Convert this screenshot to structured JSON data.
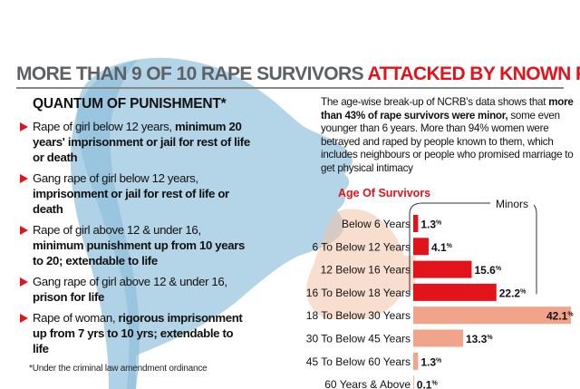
{
  "colors": {
    "red": "#e3131b",
    "salmon": "#f2a48b",
    "grey_text": "#5d6166",
    "silhouette": "#a7cde3"
  },
  "headline": {
    "part1": "MORE THAN 9 OF 10 RAPE SURVIVORS ",
    "part2": "ATTACKED BY KNOWN PEOPLE"
  },
  "punishment": {
    "title": "QUANTUM OF PUNISHMENT*",
    "items": [
      {
        "lead": "Rape of girl below 12 years,",
        "detail": "minimum 20 years' imprisonment or jail for rest of life or death"
      },
      {
        "lead": "Gang rape of girl below 12 years,",
        "detail": "imprisonment or jail for rest of life or death"
      },
      {
        "lead": "Rape of girl above 12 & under 16,",
        "detail": "minimum punishment up from 10 years to 20; extendable to life"
      },
      {
        "lead": "Gang rape of girl above 12 & under 16,",
        "detail": "prison for life"
      },
      {
        "lead": "Rape of woman,",
        "detail": "rigorous imprisonment up from 7 yrs to 10 yrs; extendable to life"
      }
    ],
    "footnote": "*Under the criminal law amendment ordinance"
  },
  "intro": {
    "part1": "The age-wise break-up of NCRB's data shows that ",
    "part2_bold": "more than 43% of rape survivors were minor,",
    "part3": " some even younger than 6 years. More than 94% women were betrayed and raped by people known to them, which includes neighbours or people who promised marriage to get physical intimacy"
  },
  "chart_data": {
    "type": "bar",
    "title": "Age Of Survivors",
    "annotation": "Minors",
    "orientation": "horizontal",
    "value_suffix": "%",
    "categories": [
      "Below 6 Years",
      "6 To Below 12 Years",
      "12 Below 16 Years",
      "16 To Below 18 Years",
      "18 To Below 30 Years",
      "30 To Below 45 Years",
      "45 To Below 60 Years",
      "60 Years & Above"
    ],
    "values": [
      1.3,
      4.1,
      15.6,
      22.2,
      42.1,
      13.3,
      1.3,
      0.1
    ],
    "minor": [
      true,
      true,
      true,
      true,
      false,
      false,
      false,
      false
    ],
    "xlim": [
      0,
      42.1
    ]
  }
}
